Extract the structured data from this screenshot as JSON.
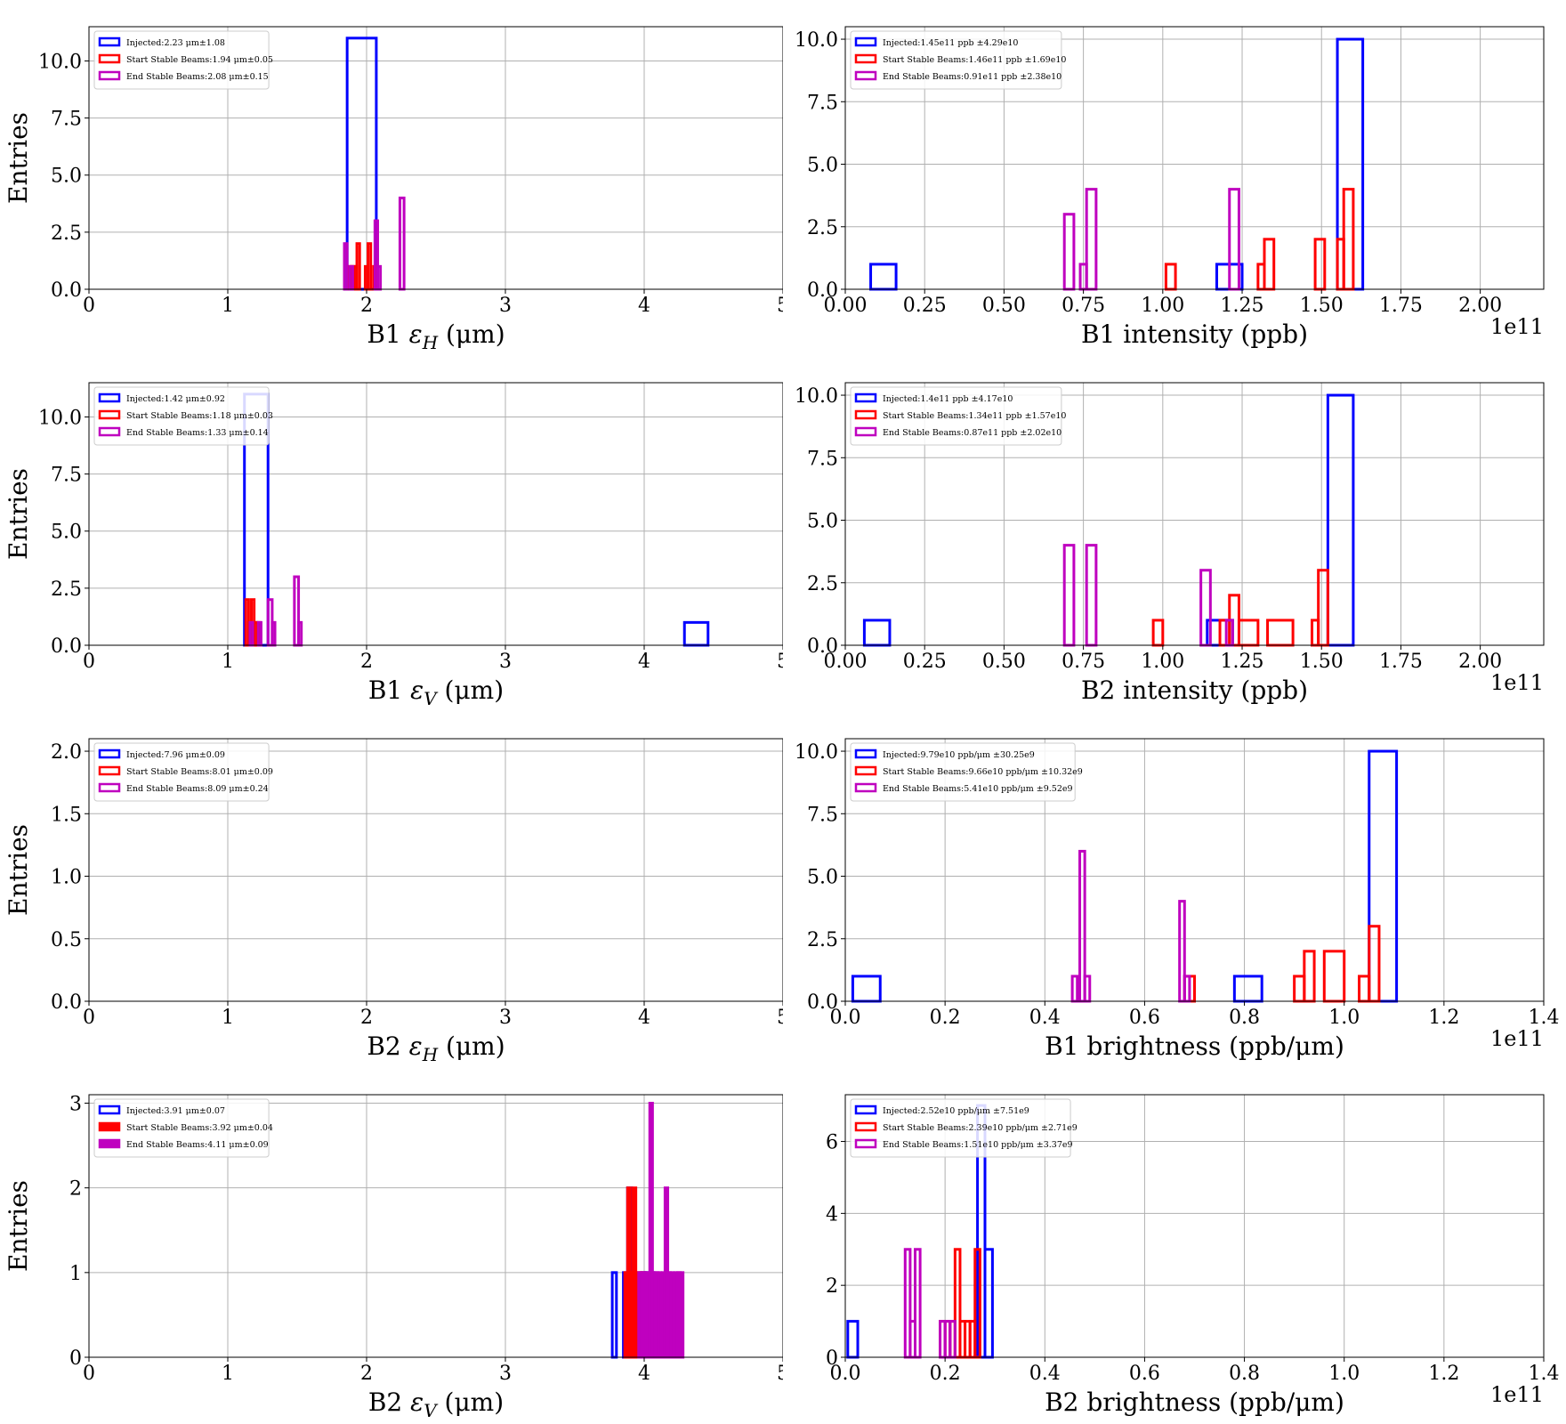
{
  "chart_data": [
    {
      "type": "histogram",
      "xlabel": "B1 ε_H (μm)",
      "ylabel": "Entries",
      "xlim": [
        0,
        5
      ],
      "ylim": [
        0,
        11.5
      ],
      "xticks": [
        0,
        1,
        2,
        3,
        4,
        5
      ],
      "xtick_labels": [
        "0",
        "1",
        "2",
        "3",
        "4",
        "5"
      ],
      "yticks": [
        0,
        2.5,
        5,
        7.5,
        10
      ],
      "ytick_labels": [
        "0.0",
        "2.5",
        "5.0",
        "7.5",
        "10.0"
      ],
      "offset_text": "",
      "grid": true,
      "legend_position": "top-left",
      "series": [
        {
          "name": "Injected:2.23 μm±1.08",
          "color": "#0000ff",
          "fill": false,
          "bins": [
            [
              1.86,
              2.07,
              11
            ]
          ]
        },
        {
          "name": "Start Stable Beams:1.94 μm±0.05",
          "color": "#ff0000",
          "fill": false,
          "bins": [
            [
              1.87,
              1.89,
              1
            ],
            [
              1.89,
              1.91,
              1
            ],
            [
              1.91,
              1.93,
              1
            ],
            [
              1.93,
              1.95,
              2
            ],
            [
              1.99,
              2.01,
              1
            ],
            [
              2.01,
              2.03,
              2
            ],
            [
              2.05,
              2.07,
              1
            ]
          ]
        },
        {
          "name": "End Stable Beams:2.08 μm±0.15",
          "color": "#bf00bf",
          "fill": false,
          "bins": [
            [
              1.84,
              1.86,
              2
            ],
            [
              1.88,
              1.9,
              1
            ],
            [
              2.06,
              2.08,
              3
            ],
            [
              2.08,
              2.1,
              1
            ],
            [
              2.24,
              2.27,
              4
            ]
          ]
        }
      ]
    },
    {
      "type": "histogram",
      "xlabel": "B1 intensity (ppb)",
      "ylabel": "",
      "xlim": [
        0,
        2.2
      ],
      "ylim": [
        0,
        10.5
      ],
      "xticks": [
        0,
        0.25,
        0.5,
        0.75,
        1.0,
        1.25,
        1.5,
        1.75,
        2.0
      ],
      "xtick_labels": [
        "0.00",
        "0.25",
        "0.50",
        "0.75",
        "1.00",
        "1.25",
        "1.50",
        "1.75",
        "2.00"
      ],
      "yticks": [
        0,
        2.5,
        5,
        7.5,
        10
      ],
      "ytick_labels": [
        "0.0",
        "2.5",
        "5.0",
        "7.5",
        "10.0"
      ],
      "offset_text": "1e11",
      "grid": true,
      "legend_position": "top-left",
      "series": [
        {
          "name": "Injected:1.45e11 ppb ±4.29e10",
          "color": "#0000ff",
          "fill": false,
          "bins": [
            [
              0.08,
              0.16,
              1
            ],
            [
              1.17,
              1.25,
              1
            ],
            [
              1.55,
              1.63,
              10
            ]
          ]
        },
        {
          "name": "Start Stable Beams:1.46e11 ppb ±1.69e10",
          "color": "#ff0000",
          "fill": false,
          "bins": [
            [
              1.01,
              1.04,
              1
            ],
            [
              1.3,
              1.32,
              1
            ],
            [
              1.32,
              1.35,
              2
            ],
            [
              1.48,
              1.51,
              2
            ],
            [
              1.55,
              1.57,
              2
            ],
            [
              1.57,
              1.6,
              4
            ]
          ]
        },
        {
          "name": "End Stable Beams:0.91e11 ppb ±2.38e10",
          "color": "#bf00bf",
          "fill": false,
          "bins": [
            [
              0.69,
              0.72,
              3
            ],
            [
              0.74,
              0.76,
              1
            ],
            [
              0.76,
              0.79,
              4
            ],
            [
              1.21,
              1.24,
              4
            ]
          ]
        }
      ]
    },
    {
      "type": "histogram",
      "xlabel": "B1 ε_V (μm)",
      "ylabel": "Entries",
      "xlim": [
        0,
        5
      ],
      "ylim": [
        0,
        11.5
      ],
      "xticks": [
        0,
        1,
        2,
        3,
        4,
        5
      ],
      "xtick_labels": [
        "0",
        "1",
        "2",
        "3",
        "4",
        "5"
      ],
      "yticks": [
        0,
        2.5,
        5,
        7.5,
        10
      ],
      "ytick_labels": [
        "0.0",
        "2.5",
        "5.0",
        "7.5",
        "10.0"
      ],
      "offset_text": "",
      "grid": true,
      "legend_position": "top-left",
      "series": [
        {
          "name": "Injected:1.42 μm±0.92",
          "color": "#0000ff",
          "fill": false,
          "bins": [
            [
              1.12,
              1.29,
              11
            ],
            [
              4.29,
              4.46,
              1
            ]
          ]
        },
        {
          "name": "Start Stable Beams:1.18 μm±0.03",
          "color": "#ff0000",
          "fill": false,
          "bins": [
            [
              1.13,
              1.15,
              2
            ],
            [
              1.15,
              1.17,
              1
            ],
            [
              1.17,
              1.19,
              2
            ],
            [
              1.19,
              1.21,
              1
            ],
            [
              1.21,
              1.23,
              1
            ]
          ]
        },
        {
          "name": "End Stable Beams:1.33 μm±0.14",
          "color": "#bf00bf",
          "fill": false,
          "bins": [
            [
              1.16,
              1.18,
              1
            ],
            [
              1.22,
              1.24,
              1
            ],
            [
              1.29,
              1.32,
              2
            ],
            [
              1.32,
              1.34,
              1
            ],
            [
              1.48,
              1.51,
              3
            ],
            [
              1.51,
              1.53,
              1
            ]
          ]
        }
      ]
    },
    {
      "type": "histogram",
      "xlabel": "B2 intensity (ppb)",
      "ylabel": "",
      "xlim": [
        0,
        2.2
      ],
      "ylim": [
        0,
        10.5
      ],
      "xticks": [
        0,
        0.25,
        0.5,
        0.75,
        1.0,
        1.25,
        1.5,
        1.75,
        2.0
      ],
      "xtick_labels": [
        "0.00",
        "0.25",
        "0.50",
        "0.75",
        "1.00",
        "1.25",
        "1.50",
        "1.75",
        "2.00"
      ],
      "yticks": [
        0,
        2.5,
        5,
        7.5,
        10
      ],
      "ytick_labels": [
        "0.0",
        "2.5",
        "5.0",
        "7.5",
        "10.0"
      ],
      "offset_text": "1e11",
      "grid": true,
      "legend_position": "top-left",
      "series": [
        {
          "name": "Injected:1.4e11 ppb ±4.17e10",
          "color": "#0000ff",
          "fill": false,
          "bins": [
            [
              0.06,
              0.14,
              1
            ],
            [
              1.14,
              1.22,
              1
            ],
            [
              1.52,
              1.6,
              10
            ]
          ]
        },
        {
          "name": "Start Stable Beams:1.34e11 ppb ±1.57e10",
          "color": "#ff0000",
          "fill": false,
          "bins": [
            [
              0.97,
              1.0,
              1
            ],
            [
              1.18,
              1.21,
              1
            ],
            [
              1.21,
              1.24,
              2
            ],
            [
              1.24,
              1.3,
              1
            ],
            [
              1.33,
              1.41,
              1
            ],
            [
              1.47,
              1.49,
              1
            ],
            [
              1.49,
              1.52,
              3
            ]
          ]
        },
        {
          "name": "End Stable Beams:0.87e11 ppb ±2.02e10",
          "color": "#bf00bf",
          "fill": false,
          "bins": [
            [
              0.69,
              0.72,
              4
            ],
            [
              0.76,
              0.79,
              4
            ],
            [
              1.12,
              1.15,
              3
            ],
            [
              1.2,
              1.22,
              1
            ]
          ]
        }
      ]
    },
    {
      "type": "histogram",
      "xlabel": "B2 ε_H (μm)",
      "ylabel": "Entries",
      "xlim": [
        0,
        5
      ],
      "ylim": [
        0,
        2.1
      ],
      "xticks": [
        0,
        1,
        2,
        3,
        4,
        5
      ],
      "xtick_labels": [
        "0",
        "1",
        "2",
        "3",
        "4",
        "5"
      ],
      "yticks": [
        0,
        0.5,
        1.0,
        1.5,
        2.0
      ],
      "ytick_labels": [
        "0.0",
        "0.5",
        "1.0",
        "1.5",
        "2.0"
      ],
      "offset_text": "",
      "grid": true,
      "legend_position": "top-left",
      "series": [
        {
          "name": "Injected:7.96 μm±0.09",
          "color": "#0000ff",
          "fill": false,
          "bins": []
        },
        {
          "name": "Start Stable Beams:8.01 μm±0.09",
          "color": "#ff0000",
          "fill": false,
          "bins": []
        },
        {
          "name": "End Stable Beams:8.09 μm±0.24",
          "color": "#bf00bf",
          "fill": false,
          "bins": []
        }
      ]
    },
    {
      "type": "histogram",
      "xlabel": "B1 brightness (ppb/μm)",
      "ylabel": "",
      "xlim": [
        0,
        1.4
      ],
      "ylim": [
        0,
        10.5
      ],
      "xticks": [
        0,
        0.2,
        0.4,
        0.6,
        0.8,
        1.0,
        1.2,
        1.4
      ],
      "xtick_labels": [
        "0.0",
        "0.2",
        "0.4",
        "0.6",
        "0.8",
        "1.0",
        "1.2",
        "1.4"
      ],
      "yticks": [
        0,
        2.5,
        5,
        7.5,
        10
      ],
      "ytick_labels": [
        "0.0",
        "2.5",
        "5.0",
        "7.5",
        "10.0"
      ],
      "offset_text": "1e11",
      "grid": true,
      "legend_position": "top-left",
      "series": [
        {
          "name": "Injected:9.79e10 ppb/μm ±30.25e9",
          "color": "#0000ff",
          "fill": false,
          "bins": [
            [
              0.015,
              0.07,
              1
            ],
            [
              0.78,
              0.835,
              1
            ],
            [
              1.05,
              1.105,
              10
            ]
          ]
        },
        {
          "name": "Start Stable Beams:9.66e10 ppb/μm ±10.32e9",
          "color": "#ff0000",
          "fill": false,
          "bins": [
            [
              0.68,
              0.7,
              1
            ],
            [
              0.9,
              0.92,
              1
            ],
            [
              0.92,
              0.94,
              2
            ],
            [
              0.96,
              1.0,
              2
            ],
            [
              1.03,
              1.05,
              1
            ],
            [
              1.05,
              1.07,
              3
            ]
          ]
        },
        {
          "name": "End Stable Beams:5.41e10 ppb/μm ±9.52e9",
          "color": "#bf00bf",
          "fill": false,
          "bins": [
            [
              0.455,
              0.465,
              1
            ],
            [
              0.47,
              0.48,
              6
            ],
            [
              0.48,
              0.49,
              1
            ],
            [
              0.67,
              0.68,
              4
            ],
            [
              0.68,
              0.69,
              1
            ]
          ]
        }
      ]
    },
    {
      "type": "histogram",
      "xlabel": "B2 ε_V (μm)",
      "ylabel": "Entries",
      "xlim": [
        0,
        5
      ],
      "ylim": [
        0,
        3.1
      ],
      "xticks": [
        0,
        1,
        2,
        3,
        4,
        5
      ],
      "xtick_labels": [
        "0",
        "1",
        "2",
        "3",
        "4",
        "5"
      ],
      "yticks": [
        0,
        1,
        2,
        3
      ],
      "ytick_labels": [
        "0",
        "1",
        "2",
        "3"
      ],
      "offset_text": "",
      "grid": true,
      "legend_position": "top-left",
      "series": [
        {
          "name": "Injected:3.91 μm±0.07",
          "color": "#0000ff",
          "fill": false,
          "bins": [
            [
              3.77,
              3.8,
              1
            ],
            [
              3.85,
              3.88,
              1
            ],
            [
              3.88,
              3.91,
              2
            ],
            [
              3.91,
              3.94,
              1
            ],
            [
              3.98,
              4.01,
              1
            ],
            [
              4.01,
              4.04,
              1
            ],
            [
              4.04,
              4.07,
              1
            ]
          ]
        },
        {
          "name": "Start Stable Beams:3.92 μm±0.04",
          "color": "#ff0000",
          "fill": true,
          "bins": [
            [
              3.86,
              3.88,
              1
            ],
            [
              3.88,
              3.9,
              2
            ],
            [
              3.9,
              3.92,
              1
            ],
            [
              3.92,
              3.94,
              2
            ],
            [
              3.94,
              3.96,
              1
            ],
            [
              3.96,
              3.98,
              1
            ],
            [
              3.98,
              4.0,
              1
            ]
          ]
        },
        {
          "name": "End Stable Beams:4.11 μm±0.09",
          "color": "#bf00bf",
          "fill": true,
          "bins": [
            [
              3.96,
              3.98,
              1
            ],
            [
              3.98,
              4.0,
              1
            ],
            [
              4.0,
              4.02,
              1
            ],
            [
              4.02,
              4.04,
              1
            ],
            [
              4.04,
              4.06,
              3
            ],
            [
              4.06,
              4.08,
              1
            ],
            [
              4.08,
              4.1,
              1
            ],
            [
              4.1,
              4.12,
              1
            ],
            [
              4.13,
              4.15,
              1
            ],
            [
              4.15,
              4.17,
              2
            ],
            [
              4.17,
              4.19,
              1
            ],
            [
              4.19,
              4.21,
              1
            ],
            [
              4.22,
              4.24,
              1
            ],
            [
              4.24,
              4.26,
              1
            ],
            [
              4.26,
              4.28,
              1
            ]
          ]
        }
      ]
    },
    {
      "type": "histogram",
      "xlabel": "B2 brightness (ppb/μm)",
      "ylabel": "",
      "xlim": [
        0,
        1.4
      ],
      "ylim": [
        0,
        7.3
      ],
      "xticks": [
        0,
        0.2,
        0.4,
        0.6,
        0.8,
        1.0,
        1.2,
        1.4
      ],
      "xtick_labels": [
        "0.0",
        "0.2",
        "0.4",
        "0.6",
        "0.8",
        "1.0",
        "1.2",
        "1.4"
      ],
      "yticks": [
        0,
        2,
        4,
        6
      ],
      "ytick_labels": [
        "0",
        "2",
        "4",
        "6"
      ],
      "offset_text": "1e11",
      "grid": true,
      "legend_position": "top-left",
      "series": [
        {
          "name": "Injected:2.52e10 ppb/μm ±7.51e9",
          "color": "#0000ff",
          "fill": false,
          "bins": [
            [
              0.005,
              0.025,
              1
            ],
            [
              0.265,
              0.28,
              7
            ],
            [
              0.28,
              0.295,
              3
            ]
          ]
        },
        {
          "name": "Start Stable Beams:2.39e10 ppb/μm ±2.71e9",
          "color": "#ff0000",
          "fill": false,
          "bins": [
            [
              0.19,
              0.2,
              1
            ],
            [
              0.2,
              0.21,
              1
            ],
            [
              0.21,
              0.22,
              1
            ],
            [
              0.22,
              0.23,
              3
            ],
            [
              0.23,
              0.24,
              1
            ],
            [
              0.24,
              0.25,
              1
            ],
            [
              0.25,
              0.26,
              1
            ],
            [
              0.26,
              0.27,
              3
            ]
          ]
        },
        {
          "name": "End Stable Beams:1.51e10 ppb/μm ±3.37e9",
          "color": "#bf00bf",
          "fill": false,
          "bins": [
            [
              0.12,
              0.13,
              3
            ],
            [
              0.13,
              0.14,
              1
            ],
            [
              0.14,
              0.15,
              3
            ],
            [
              0.19,
              0.2,
              1
            ],
            [
              0.2,
              0.21,
              1
            ],
            [
              0.21,
              0.22,
              1
            ]
          ]
        }
      ]
    }
  ]
}
